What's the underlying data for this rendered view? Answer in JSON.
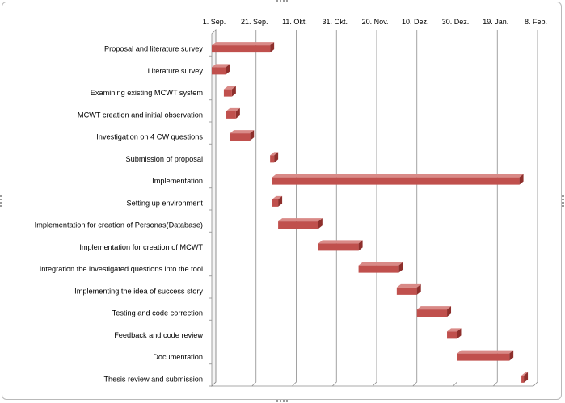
{
  "chart_data": {
    "type": "bar",
    "orientation": "horizontal",
    "style": "3d-gantt",
    "bar_color": "#c0504d",
    "x_axis_position": "top",
    "grid": true,
    "x_ticks": [
      "1. Sep.",
      "21. Sep.",
      "11. Okt.",
      "31. Okt.",
      "20. Nov.",
      "10. Dez.",
      "30. Dez.",
      "19. Jan.",
      "8. Feb."
    ],
    "tasks": [
      {
        "label": "Proposal and literature survey",
        "start": "1. Sep.",
        "end": "30. Sep."
      },
      {
        "label": "Literature survey",
        "start": "1. Sep.",
        "end": "8. Sep."
      },
      {
        "label": "Examining existing MCWT system",
        "start": "7. Sep.",
        "end": "11. Sep."
      },
      {
        "label": "MCWT creation and initial observation",
        "start": "8. Sep.",
        "end": "13. Sep."
      },
      {
        "label": "Investigation on 4 CW questions",
        "start": "10. Sep.",
        "end": "20. Sep."
      },
      {
        "label": "Submission of proposal",
        "start": "30. Sep.",
        "end": "2. Okt."
      },
      {
        "label": "Implementation",
        "start": "1. Okt.",
        "end": "1. Feb."
      },
      {
        "label": "Setting up environment",
        "start": "1. Okt.",
        "end": "4. Okt."
      },
      {
        "label": "Implementation for creation of Personas(Database)",
        "start": "4. Okt.",
        "end": "24. Okt."
      },
      {
        "label": "Implementation for creation of MCWT",
        "start": "24. Okt.",
        "end": "13. Nov."
      },
      {
        "label": "Integration the investigated questions into the tool",
        "start": "13. Nov.",
        "end": "3. Dez."
      },
      {
        "label": "Implementing the idea of success story",
        "start": "2. Dez.",
        "end": "12. Dez."
      },
      {
        "label": "Testing and code correction",
        "start": "12. Dez.",
        "end": "27. Dez."
      },
      {
        "label": "Feedback and code review",
        "start": "27. Dez.",
        "end": "1. Jan."
      },
      {
        "label": "Documentation",
        "start": "1. Jan.",
        "end": "27. Jan."
      },
      {
        "label": "Thesis review and submission",
        "start": "2. Feb.",
        "end": "3. Feb."
      }
    ]
  }
}
